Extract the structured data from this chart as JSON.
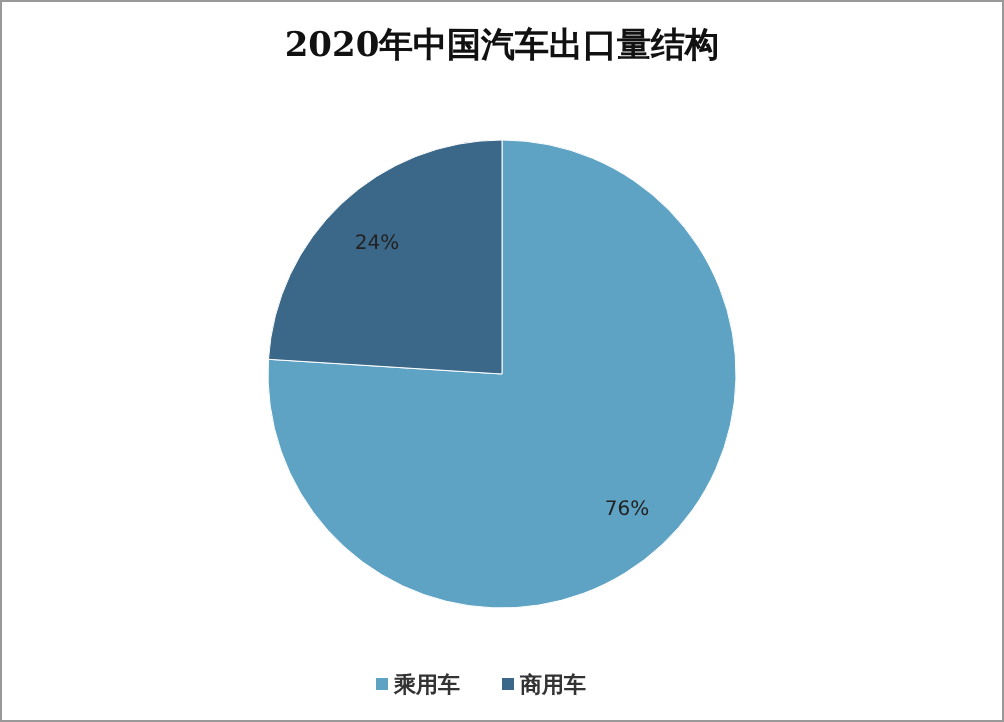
{
  "chart_data": {
    "type": "pie",
    "title": "2020年中国汽车出口量结构",
    "categories": [
      "乘用车",
      "商用车"
    ],
    "values": [
      76,
      24
    ],
    "colors": [
      "#5fa3c4",
      "#3b6788"
    ],
    "value_labels": [
      "76%",
      "24%"
    ],
    "legend": "bottom"
  }
}
